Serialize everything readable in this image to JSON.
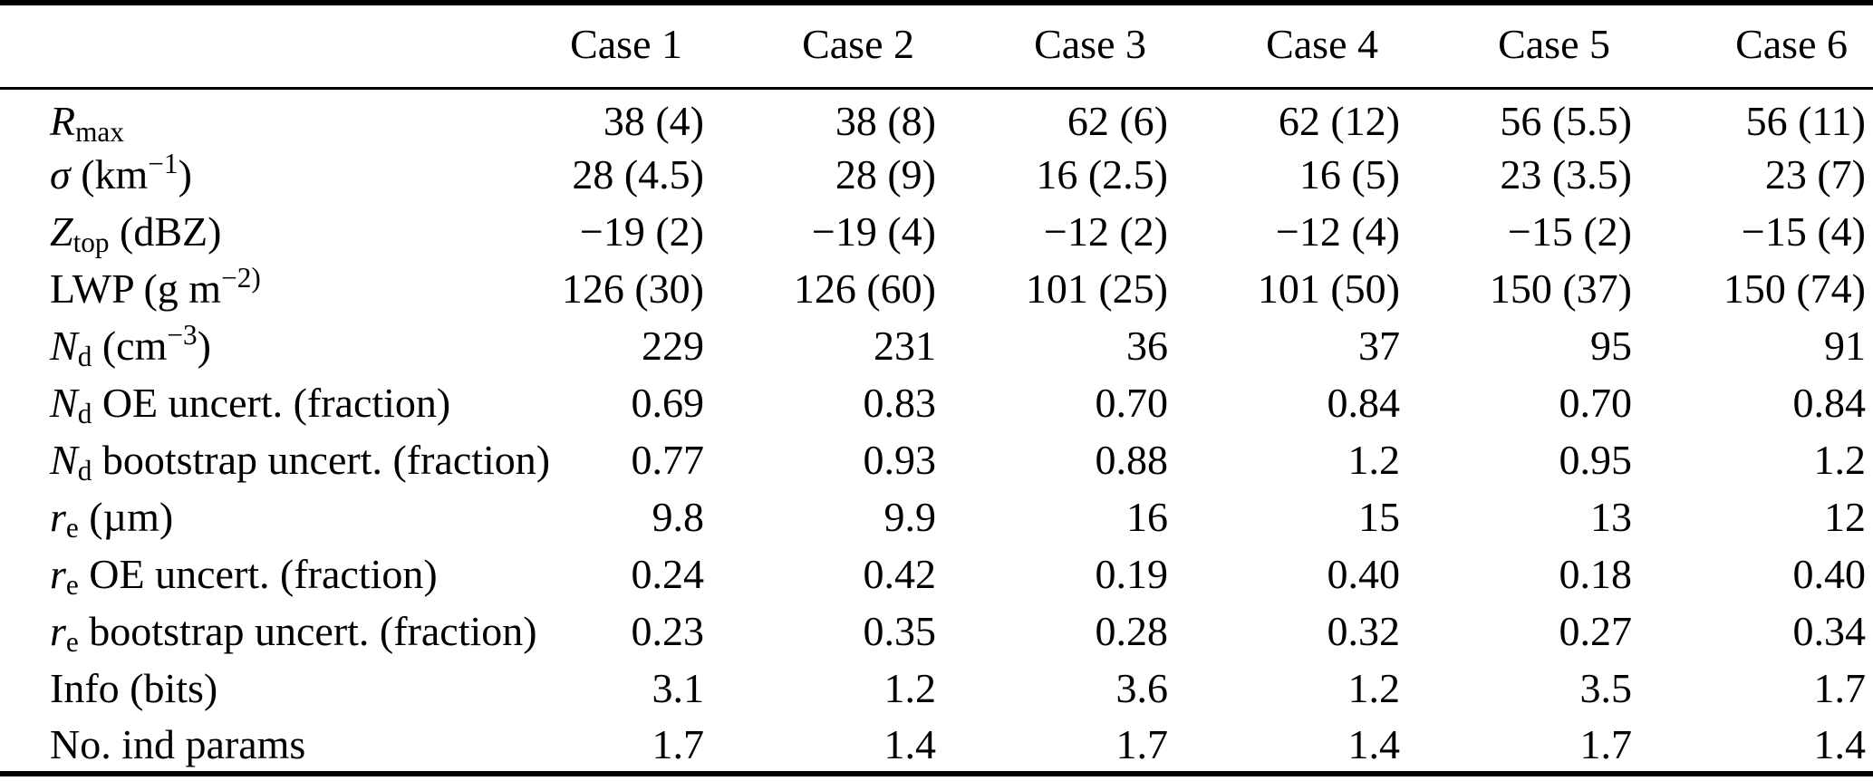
{
  "table": {
    "header": {
      "corner": "",
      "cases": [
        "Case 1",
        "Case 2",
        "Case 3",
        "Case 4",
        "Case 5",
        "Case 6"
      ]
    },
    "rows": [
      {
        "name": "r-max",
        "label_parts": [
          {
            "style": "italic",
            "text": "R"
          },
          {
            "style": "sub",
            "text": "max"
          }
        ],
        "values": [
          "38 (4)",
          "38 (8)",
          "62 (6)",
          "62 (12)",
          "56 (5.5)",
          "56 (11)"
        ]
      },
      {
        "name": "sigma-km",
        "label_parts": [
          {
            "style": "italic",
            "text": "σ"
          },
          {
            "style": "plain",
            "text": " (km"
          },
          {
            "style": "sup",
            "text": "−1"
          },
          {
            "style": "plain",
            "text": ")"
          }
        ],
        "values": [
          "28 (4.5)",
          "28 (9)",
          "16 (2.5)",
          "16 (5)",
          "23 (3.5)",
          "23 (7)"
        ]
      },
      {
        "name": "z-top-dbz",
        "label_parts": [
          {
            "style": "italic",
            "text": "Z"
          },
          {
            "style": "sub",
            "text": "top"
          },
          {
            "style": "plain",
            "text": " (dBZ)"
          }
        ],
        "values": [
          "−19 (2)",
          "−19 (4)",
          "−12 (2)",
          "−12 (4)",
          "−15 (2)",
          "−15 (4)"
        ]
      },
      {
        "name": "lwp-g-m2",
        "label_parts": [
          {
            "style": "plain",
            "text": "LWP (g m"
          },
          {
            "style": "sup",
            "text": "−2)"
          }
        ],
        "values": [
          "126 (30)",
          "126 (60)",
          "101 (25)",
          "101 (50)",
          "150 (37)",
          "150 (74)"
        ]
      },
      {
        "name": "nd-cm3",
        "label_parts": [
          {
            "style": "italic",
            "text": "N"
          },
          {
            "style": "sub",
            "text": "d"
          },
          {
            "style": "plain",
            "text": " (cm"
          },
          {
            "style": "sup",
            "text": "−3"
          },
          {
            "style": "plain",
            "text": ")"
          }
        ],
        "values": [
          "229",
          "231",
          "36",
          "37",
          "95",
          "91"
        ]
      },
      {
        "name": "nd-oe-uncert",
        "label_parts": [
          {
            "style": "italic",
            "text": "N"
          },
          {
            "style": "sub",
            "text": "d"
          },
          {
            "style": "plain",
            "text": " OE uncert. (fraction)"
          }
        ],
        "values": [
          "0.69",
          "0.83",
          "0.70",
          "0.84",
          "0.70",
          "0.84"
        ]
      },
      {
        "name": "nd-bootstrap-uncert",
        "label_parts": [
          {
            "style": "italic",
            "text": "N"
          },
          {
            "style": "sub",
            "text": "d"
          },
          {
            "style": "plain",
            "text": " bootstrap uncert. (fraction)"
          }
        ],
        "values": [
          "0.77",
          "0.93",
          "0.88",
          "1.2",
          "0.95",
          "1.2"
        ]
      },
      {
        "name": "re-um",
        "label_parts": [
          {
            "style": "italic",
            "text": "r"
          },
          {
            "style": "sub",
            "text": "e"
          },
          {
            "style": "plain",
            "text": " (µm)"
          }
        ],
        "values": [
          "9.8",
          "9.9",
          "16",
          "15",
          "13",
          "12"
        ]
      },
      {
        "name": "re-oe-uncert",
        "label_parts": [
          {
            "style": "italic",
            "text": "r"
          },
          {
            "style": "sub",
            "text": "e"
          },
          {
            "style": "plain",
            "text": " OE uncert. (fraction)"
          }
        ],
        "values": [
          "0.24",
          "0.42",
          "0.19",
          "0.40",
          "0.18",
          "0.40"
        ]
      },
      {
        "name": "re-bootstrap-uncert",
        "label_parts": [
          {
            "style": "italic",
            "text": "r"
          },
          {
            "style": "sub",
            "text": "e"
          },
          {
            "style": "plain",
            "text": " bootstrap uncert. (fraction)"
          }
        ],
        "values": [
          "0.23",
          "0.35",
          "0.28",
          "0.32",
          "0.27",
          "0.34"
        ]
      },
      {
        "name": "info-bits",
        "label_parts": [
          {
            "style": "plain",
            "text": "Info (bits)"
          }
        ],
        "values": [
          "3.1",
          "1.2",
          "3.6",
          "1.2",
          "3.5",
          "1.7"
        ]
      },
      {
        "name": "no-ind-params",
        "label_parts": [
          {
            "style": "plain",
            "text": "No. ind params"
          }
        ],
        "values": [
          "1.7",
          "1.4",
          "1.7",
          "1.4",
          "1.7",
          "1.4"
        ]
      }
    ]
  }
}
